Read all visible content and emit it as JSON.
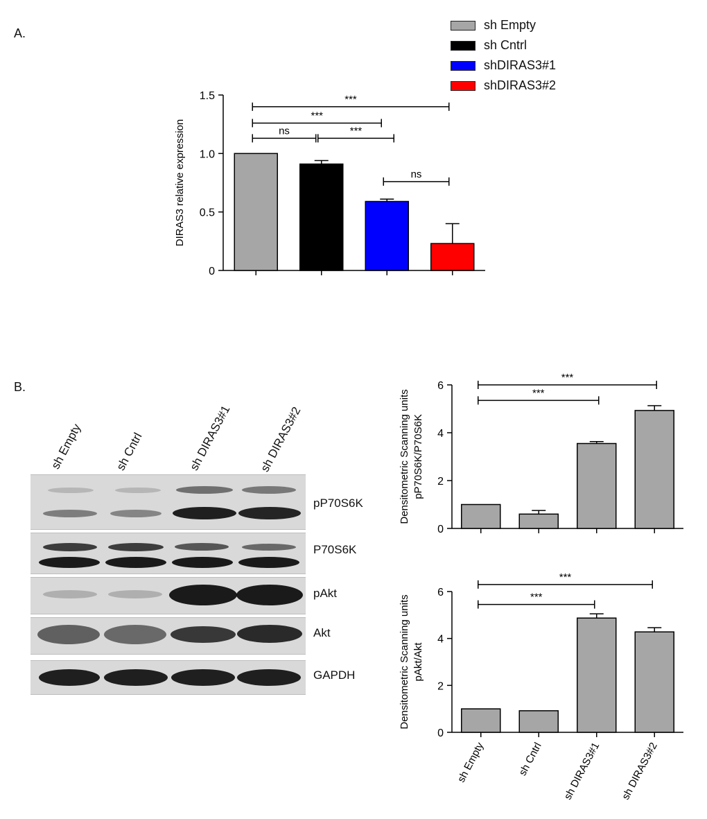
{
  "panels": {
    "a_label": "A.",
    "b_label": "B."
  },
  "legend": [
    {
      "label": "sh Empty",
      "color": "#a6a6a6"
    },
    {
      "label": "sh Cntrl",
      "color": "#000000"
    },
    {
      "label": "shDIRAS3#1",
      "color": "#0000ff"
    },
    {
      "label": "shDIRAS3#2",
      "color": "#ff0000"
    }
  ],
  "blot": {
    "lanes": [
      "sh Empty",
      "sh Cntrl",
      "sh DIRAS3#1",
      "sh DIRAS3#2"
    ],
    "strips": [
      "pP70S6K",
      "P70S6K",
      "pAkt",
      "Akt",
      "GAPDH"
    ]
  },
  "chart_data": [
    {
      "type": "bar",
      "title": "",
      "xlabel": "",
      "ylabel": "DIRAS3 relative expression",
      "categories": [
        "sh Empty",
        "sh Cntrl",
        "shDIRAS3#1",
        "shDIRAS3#2"
      ],
      "values": [
        1.0,
        0.91,
        0.59,
        0.23
      ],
      "errors": [
        0,
        0.03,
        0.02,
        0.17
      ],
      "colors": [
        "#a6a6a6",
        "#000000",
        "#0000ff",
        "#ff0000"
      ],
      "ylim": [
        0,
        1.5
      ],
      "yticks": [
        "0",
        "0.5",
        "1.0",
        "1.5"
      ],
      "yticks_values": [
        0,
        0.5,
        1.0,
        1.5
      ],
      "grid": false,
      "legend": "top-right",
      "significance": [
        {
          "from": 0,
          "to": 3,
          "label": "***",
          "level": 1.4
        },
        {
          "from": 0,
          "to": 2,
          "label": "***",
          "level": 1.26
        },
        {
          "from": 0,
          "to": 1,
          "label": "ns",
          "level": 1.13
        },
        {
          "from": 1,
          "to": 2,
          "label": "***",
          "level": 1.13
        },
        {
          "from": 2,
          "to": 3,
          "label": "ns",
          "level": 0.76
        }
      ]
    },
    {
      "type": "bar",
      "title": "",
      "xlabel": "",
      "ylabel": "Densitometric Scanning units pP70S6K/P70S6K",
      "ylabel_lines": [
        "Densitometric Scanning units",
        "pP70S6K/P70S6K"
      ],
      "categories": [
        "sh Empty",
        "sh Cntrl",
        "shDIRAS3#1",
        "shDIRAS3#2"
      ],
      "values": [
        1.0,
        0.6,
        3.55,
        4.93
      ],
      "errors": [
        0,
        0.15,
        0.08,
        0.2
      ],
      "colors": [
        "#a6a6a6",
        "#a6a6a6",
        "#a6a6a6",
        "#a6a6a6"
      ],
      "ylim": [
        0,
        6
      ],
      "yticks": [
        "0",
        "2",
        "4",
        "6"
      ],
      "yticks_values": [
        0,
        2,
        4,
        6
      ],
      "grid": false,
      "significance": [
        {
          "from": 0,
          "to": 3,
          "label": "***",
          "level": 6.0
        },
        {
          "from": 0,
          "to": 2,
          "label": "***",
          "level": 5.35
        }
      ]
    },
    {
      "type": "bar",
      "title": "",
      "xlabel": "",
      "ylabel": "Densitometric Scanning units pAkt/Akt",
      "ylabel_lines": [
        "Densitometric Scanning units",
        "pAkt/Akt"
      ],
      "categories": [
        "sh Empty",
        "sh Cntrl",
        "sh DIRAS3#1",
        "sh DIRAS3#2"
      ],
      "tick_labels": [
        "sh Empty",
        "sh Cntrl",
        "sh DIRAS3#1",
        "sh DIRAS3#2"
      ],
      "values": [
        1.0,
        0.92,
        4.87,
        4.28
      ],
      "errors": [
        0,
        0,
        0.18,
        0.18
      ],
      "colors": [
        "#a6a6a6",
        "#a6a6a6",
        "#a6a6a6",
        "#a6a6a6"
      ],
      "ylim": [
        0,
        6
      ],
      "yticks": [
        "0",
        "2",
        "4",
        "6"
      ],
      "yticks_values": [
        0,
        2,
        4,
        6
      ],
      "grid": false,
      "significance": [
        {
          "from": 0,
          "to": 3,
          "label": "***",
          "level": 6.3
        },
        {
          "from": 0,
          "to": 2,
          "label": "***",
          "level": 5.45
        }
      ]
    }
  ]
}
